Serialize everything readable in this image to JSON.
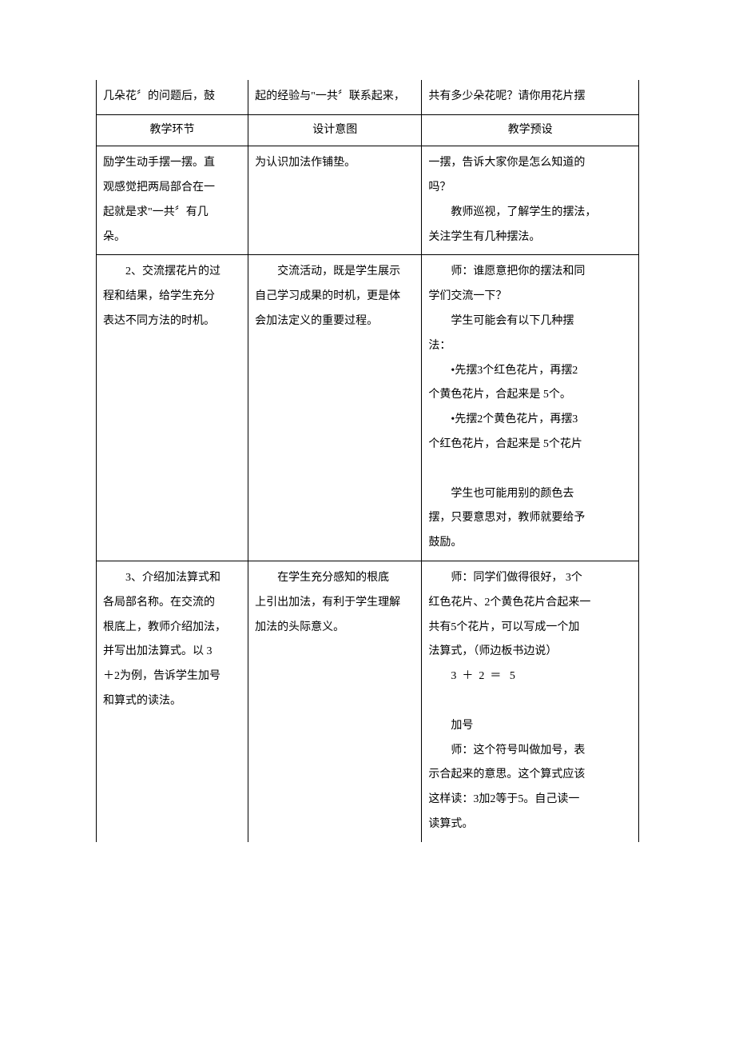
{
  "row0": {
    "c1": "几朵花〞的问题后，鼓",
    "c2": "起的经验与\"一共〞联系起来，",
    "c3": "共有多少朵花呢？请你用花片摆"
  },
  "header": {
    "c1": "教学环节",
    "c2": "设计意图",
    "c3": "教学预设"
  },
  "row1": {
    "c1_l1": "励学生动手摆一摆。直",
    "c1_l2": "观感觉把两局部合在一",
    "c1_l3": "起就是求\"一共〞有几",
    "c1_l4": "朵。",
    "c2_l1": "为认识加法作铺垫。",
    "c3_l1": "一摆，告诉大家你是怎么知道的",
    "c3_l2": "吗？",
    "c3_l3": "教师巡视，了解学生的摆法，",
    "c3_l4": "关注学生有几种摆法。"
  },
  "row2": {
    "c1_l1": "2、交流摆花片的过",
    "c1_l2": "程和结果，给学生充分",
    "c1_l3": "表达不同方法的时机。",
    "c2_l1": "交流活动，既是学生展示",
    "c2_l2": "自己学习成果的时机，更是体",
    "c2_l3": "会加法定义的重要过程。",
    "c3_l1": "师：谁愿意把你的摆法和同",
    "c3_l2": "学们交流一下？",
    "c3_l3": "学生可能会有以下几种摆",
    "c3_l4": "法：",
    "c3_l5": "•先摆3个红色花片，再摆2",
    "c3_l6": "个黄色花片，合起来是 5个。",
    "c3_l7": "•先摆2个黄色花片，再摆3",
    "c3_l8": "个红色花片，合起来是   5个花片",
    "c3_l9": "学生也可能用别的颜色去",
    "c3_l10": "摆，只要意思对，教师就要给予",
    "c3_l11": "鼓励。"
  },
  "row3": {
    "c1_l1": "3、介绍加法算式和",
    "c1_l2": "各局部名称。在交流的",
    "c1_l3": "根底上，教师介绍加法，",
    "c1_l4": "并写出加法算式。以   3",
    "c1_l5": "＋2为例，告诉学生加号",
    "c1_l6": "和算式的读法。",
    "c2_l1": "在学生充分感知的根底",
    "c2_l2": "上引出加法，有利于学生理解",
    "c2_l3": "加法的头际意义。",
    "c3_l1": "师：同学们做得很好，  3个",
    "c3_l2": "红色花片、2个黄色花片合起来一",
    "c3_l3": "共有5个花片，可以写成一个加",
    "c3_l4": "法算式，（师边板书边说）",
    "c3_eq": "3  ＋  2  ＝   5",
    "c3_l5": "加号",
    "c3_l6": "师：这个符号叫做加号，表",
    "c3_l7": "示合起来的意思。这个算式应该",
    "c3_l8": "这样读：3加2等于5。自己读一",
    "c3_l9": "读算式。"
  }
}
